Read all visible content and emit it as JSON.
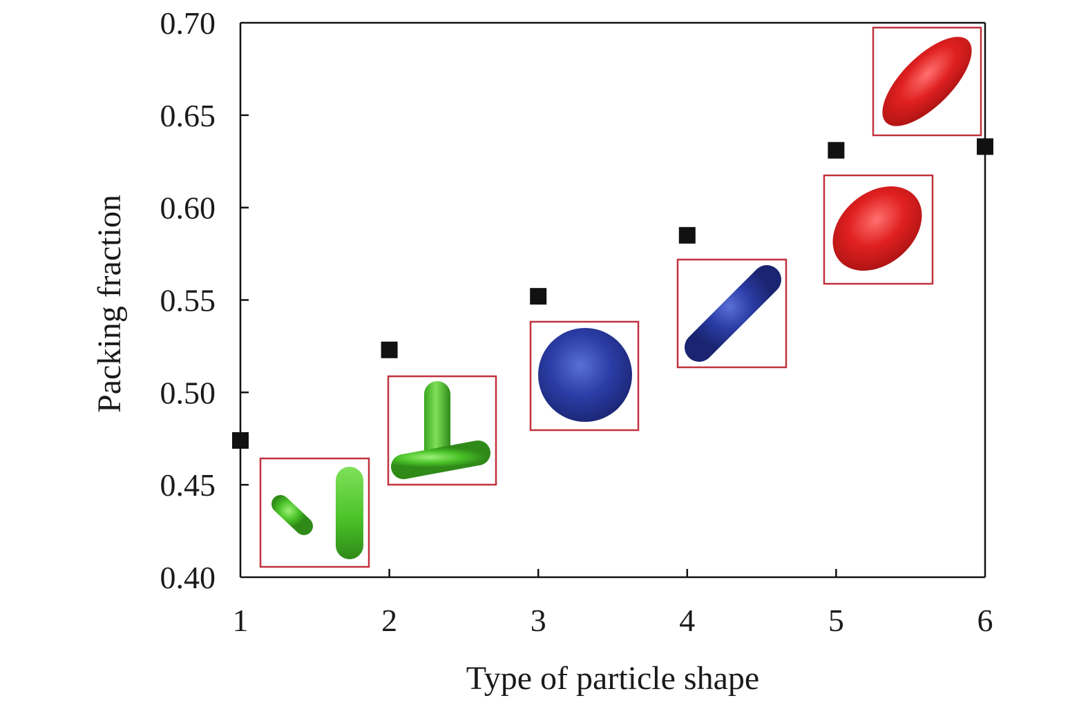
{
  "chart_data": {
    "type": "scatter",
    "title": "",
    "xlabel": "Type of particle shape",
    "ylabel": "Packing fraction",
    "xlim": [
      1,
      6
    ],
    "ylim": [
      0.4,
      0.7
    ],
    "x_ticks": [
      "1",
      "2",
      "3",
      "4",
      "5",
      "6"
    ],
    "y_ticks": [
      "0.40",
      "0.45",
      "0.50",
      "0.55",
      "0.60",
      "0.65",
      "0.70"
    ],
    "grid": false,
    "legend": "none",
    "marker": "square",
    "marker_color": "#111111",
    "series": [
      {
        "x": [
          1,
          2,
          3,
          4,
          5,
          6
        ],
        "y": [
          0.474,
          0.523,
          0.552,
          0.585,
          0.631,
          0.633
        ]
      }
    ],
    "inset_images": [
      {
        "shape": "tripod",
        "color": "#4cc42a",
        "anchor_x": 1
      },
      {
        "shape": "tetrapod",
        "color": "#4cc42a",
        "anchor_x": 2
      },
      {
        "shape": "sphere",
        "color": "#2b3da6",
        "anchor_x": 3
      },
      {
        "shape": "spherocylinder",
        "color": "#2b3da6",
        "anchor_x": 4
      },
      {
        "shape": "ellipsoid",
        "color": "#d81e1e",
        "anchor_x": 5
      },
      {
        "shape": "elongated-ellipsoid",
        "color": "#d81e1e",
        "anchor_x": 6
      }
    ],
    "frame_color": "#c0303c"
  }
}
